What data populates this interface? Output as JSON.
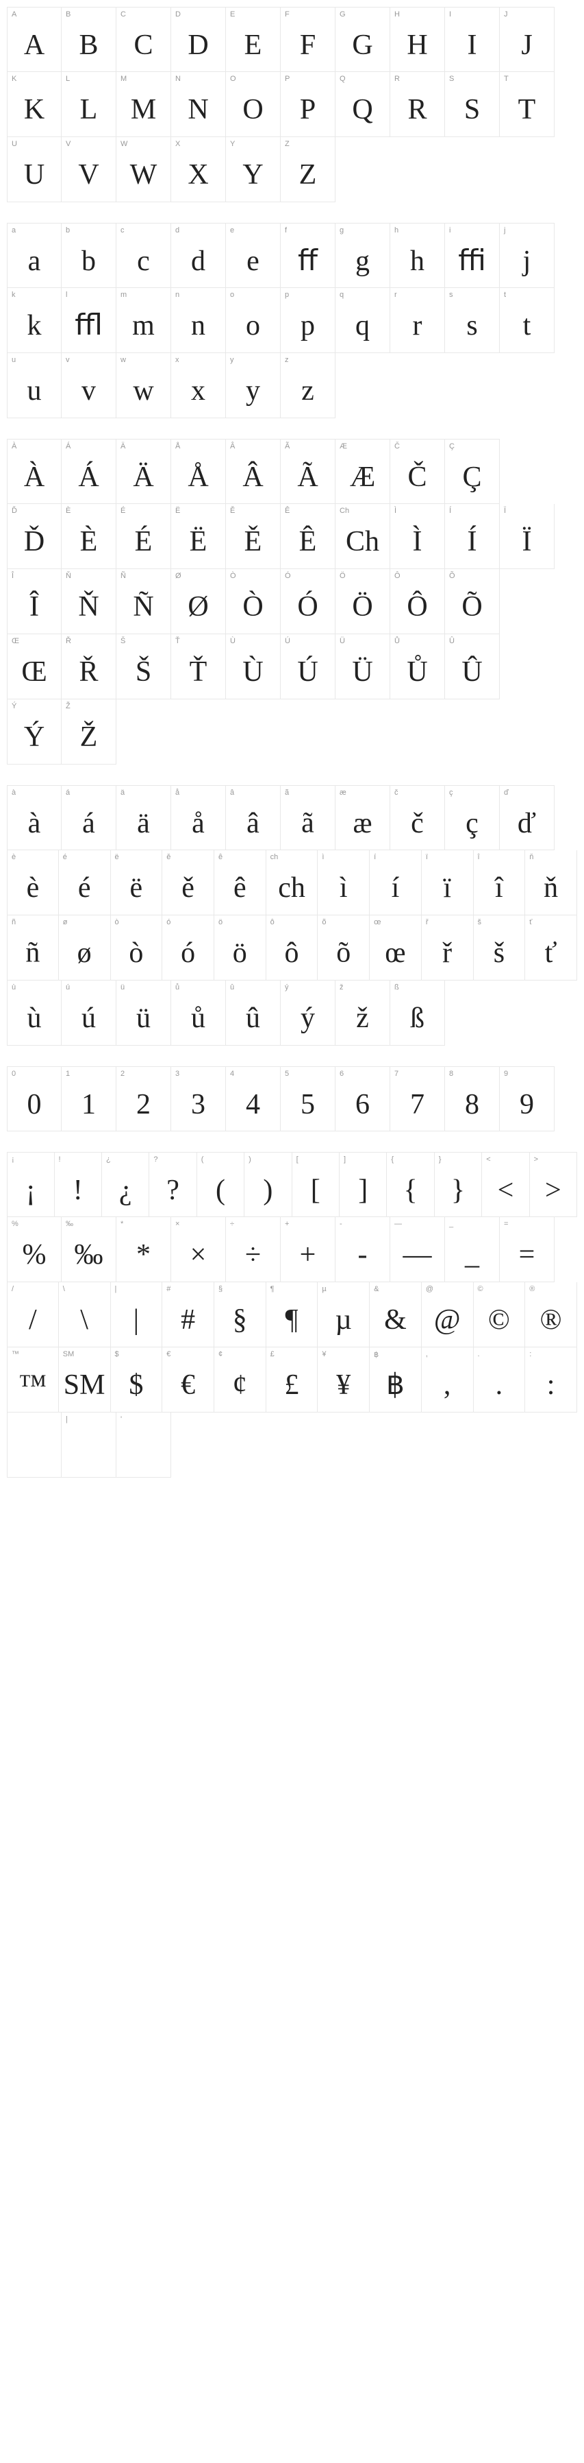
{
  "sections": [
    {
      "rows": [
        [
          {
            "label": "A",
            "glyph": "A"
          },
          {
            "label": "B",
            "glyph": "B"
          },
          {
            "label": "C",
            "glyph": "C"
          },
          {
            "label": "D",
            "glyph": "D"
          },
          {
            "label": "E",
            "glyph": "E"
          },
          {
            "label": "F",
            "glyph": "F"
          },
          {
            "label": "G",
            "glyph": "G"
          },
          {
            "label": "H",
            "glyph": "H"
          },
          {
            "label": "I",
            "glyph": "I"
          },
          {
            "label": "J",
            "glyph": "J"
          }
        ],
        [
          {
            "label": "K",
            "glyph": "K"
          },
          {
            "label": "L",
            "glyph": "L"
          },
          {
            "label": "M",
            "glyph": "M"
          },
          {
            "label": "N",
            "glyph": "N"
          },
          {
            "label": "O",
            "glyph": "O"
          },
          {
            "label": "P",
            "glyph": "P"
          },
          {
            "label": "Q",
            "glyph": "Q"
          },
          {
            "label": "R",
            "glyph": "R"
          },
          {
            "label": "S",
            "glyph": "S"
          },
          {
            "label": "T",
            "glyph": "T"
          }
        ],
        [
          {
            "label": "U",
            "glyph": "U"
          },
          {
            "label": "V",
            "glyph": "V"
          },
          {
            "label": "W",
            "glyph": "W"
          },
          {
            "label": "X",
            "glyph": "X"
          },
          {
            "label": "Y",
            "glyph": "Y"
          },
          {
            "label": "Z",
            "glyph": "Z"
          }
        ]
      ]
    },
    {
      "rows": [
        [
          {
            "label": "a",
            "glyph": "a"
          },
          {
            "label": "b",
            "glyph": "b"
          },
          {
            "label": "c",
            "glyph": "c"
          },
          {
            "label": "d",
            "glyph": "d"
          },
          {
            "label": "e",
            "glyph": "e"
          },
          {
            "label": "f",
            "glyph": "ﬀ"
          },
          {
            "label": "g",
            "glyph": "g"
          },
          {
            "label": "h",
            "glyph": "h"
          },
          {
            "label": "i",
            "glyph": "ﬃ"
          },
          {
            "label": "j",
            "glyph": "j"
          }
        ],
        [
          {
            "label": "k",
            "glyph": "k"
          },
          {
            "label": "l",
            "glyph": "ﬄ"
          },
          {
            "label": "m",
            "glyph": "m"
          },
          {
            "label": "n",
            "glyph": "n"
          },
          {
            "label": "o",
            "glyph": "o"
          },
          {
            "label": "p",
            "glyph": "p"
          },
          {
            "label": "q",
            "glyph": "q"
          },
          {
            "label": "r",
            "glyph": "r"
          },
          {
            "label": "s",
            "glyph": "s"
          },
          {
            "label": "t",
            "glyph": "t"
          }
        ],
        [
          {
            "label": "u",
            "glyph": "u"
          },
          {
            "label": "v",
            "glyph": "v"
          },
          {
            "label": "w",
            "glyph": "w"
          },
          {
            "label": "x",
            "glyph": "x"
          },
          {
            "label": "y",
            "glyph": "y"
          },
          {
            "label": "z",
            "glyph": "z"
          }
        ]
      ]
    },
    {
      "rows": [
        [
          {
            "label": "À",
            "glyph": "À"
          },
          {
            "label": "Á",
            "glyph": "Á"
          },
          {
            "label": "Ä",
            "glyph": "Ä"
          },
          {
            "label": "Å",
            "glyph": "Å"
          },
          {
            "label": "Â",
            "glyph": "Â"
          },
          {
            "label": "Ã",
            "glyph": "Ã"
          },
          {
            "label": "Æ",
            "glyph": "Æ"
          },
          {
            "label": "Č",
            "glyph": "Č"
          },
          {
            "label": "Ç",
            "glyph": "Ç"
          }
        ],
        [
          {
            "label": "Ď",
            "glyph": "Ď"
          },
          {
            "label": "È",
            "glyph": "È"
          },
          {
            "label": "É",
            "glyph": "É"
          },
          {
            "label": "Ë",
            "glyph": "Ë"
          },
          {
            "label": "Ě",
            "glyph": "Ě"
          },
          {
            "label": "Ê",
            "glyph": "Ê"
          },
          {
            "label": "Ch",
            "glyph": "Ch"
          },
          {
            "label": "Ì",
            "glyph": "Ì"
          },
          {
            "label": "Í",
            "glyph": "Í"
          },
          {
            "label": "Ï",
            "glyph": "Ï"
          }
        ],
        [
          {
            "label": "Î",
            "glyph": "Î"
          },
          {
            "label": "Ň",
            "glyph": "Ň"
          },
          {
            "label": "Ñ",
            "glyph": "Ñ"
          },
          {
            "label": "Ø",
            "glyph": "Ø"
          },
          {
            "label": "Ò",
            "glyph": "Ò"
          },
          {
            "label": "Ó",
            "glyph": "Ó"
          },
          {
            "label": "Ö",
            "glyph": "Ö"
          },
          {
            "label": "Ô",
            "glyph": "Ô"
          },
          {
            "label": "Õ",
            "glyph": "Õ"
          }
        ],
        [
          {
            "label": "Œ",
            "glyph": "Œ"
          },
          {
            "label": "Ř",
            "glyph": "Ř"
          },
          {
            "label": "Š",
            "glyph": "Š"
          },
          {
            "label": "Ť",
            "glyph": "Ť"
          },
          {
            "label": "Ù",
            "glyph": "Ù"
          },
          {
            "label": "Ú",
            "glyph": "Ú"
          },
          {
            "label": "Ü",
            "glyph": "Ü"
          },
          {
            "label": "Ů",
            "glyph": "Ů"
          },
          {
            "label": "Û",
            "glyph": "Û"
          }
        ],
        [
          {
            "label": "Ý",
            "glyph": "Ý"
          },
          {
            "label": "Ž",
            "glyph": "Ž"
          }
        ]
      ]
    },
    {
      "rows": [
        [
          {
            "label": "à",
            "glyph": "à"
          },
          {
            "label": "á",
            "glyph": "á"
          },
          {
            "label": "ä",
            "glyph": "ä"
          },
          {
            "label": "å",
            "glyph": "å"
          },
          {
            "label": "â",
            "glyph": "â"
          },
          {
            "label": "ã",
            "glyph": "ã"
          },
          {
            "label": "æ",
            "glyph": "æ"
          },
          {
            "label": "č",
            "glyph": "č"
          },
          {
            "label": "ç",
            "glyph": "ç"
          },
          {
            "label": "ď",
            "glyph": "ď"
          }
        ],
        [
          {
            "label": "è",
            "glyph": "è"
          },
          {
            "label": "é",
            "glyph": "é"
          },
          {
            "label": "ë",
            "glyph": "ë"
          },
          {
            "label": "ě",
            "glyph": "ě"
          },
          {
            "label": "ê",
            "glyph": "ê"
          },
          {
            "label": "ch",
            "glyph": "ch"
          },
          {
            "label": "ì",
            "glyph": "ì"
          },
          {
            "label": "í",
            "glyph": "í"
          },
          {
            "label": "ï",
            "glyph": "ï"
          },
          {
            "label": "î",
            "glyph": "î"
          },
          {
            "label": "ň",
            "glyph": "ň"
          }
        ],
        [
          {
            "label": "ñ",
            "glyph": "ñ"
          },
          {
            "label": "ø",
            "glyph": "ø"
          },
          {
            "label": "ò",
            "glyph": "ò"
          },
          {
            "label": "ó",
            "glyph": "ó"
          },
          {
            "label": "ö",
            "glyph": "ö"
          },
          {
            "label": "ô",
            "glyph": "ô"
          },
          {
            "label": "õ",
            "glyph": "õ"
          },
          {
            "label": "œ",
            "glyph": "œ"
          },
          {
            "label": "ř",
            "glyph": "ř"
          },
          {
            "label": "š",
            "glyph": "š"
          },
          {
            "label": "ť",
            "glyph": "ť"
          }
        ],
        [
          {
            "label": "ù",
            "glyph": "ù"
          },
          {
            "label": "ú",
            "glyph": "ú"
          },
          {
            "label": "ü",
            "glyph": "ü"
          },
          {
            "label": "ů",
            "glyph": "ů"
          },
          {
            "label": "û",
            "glyph": "û"
          },
          {
            "label": "ý",
            "glyph": "ý"
          },
          {
            "label": "ž",
            "glyph": "ž"
          },
          {
            "label": "ß",
            "glyph": "ß"
          }
        ]
      ]
    },
    {
      "rows": [
        [
          {
            "label": "0",
            "glyph": "0"
          },
          {
            "label": "1",
            "glyph": "1"
          },
          {
            "label": "2",
            "glyph": "2"
          },
          {
            "label": "3",
            "glyph": "3"
          },
          {
            "label": "4",
            "glyph": "4"
          },
          {
            "label": "5",
            "glyph": "5"
          },
          {
            "label": "6",
            "glyph": "6"
          },
          {
            "label": "7",
            "glyph": "7"
          },
          {
            "label": "8",
            "glyph": "8"
          },
          {
            "label": "9",
            "glyph": "9"
          }
        ]
      ]
    },
    {
      "rows": [
        [
          {
            "label": "¡",
            "glyph": "¡"
          },
          {
            "label": "!",
            "glyph": "!"
          },
          {
            "label": "¿",
            "glyph": "¿"
          },
          {
            "label": "?",
            "glyph": "?"
          },
          {
            "label": "(",
            "glyph": "("
          },
          {
            "label": ")",
            "glyph": ")"
          },
          {
            "label": "[",
            "glyph": "["
          },
          {
            "label": "]",
            "glyph": "]"
          },
          {
            "label": "{",
            "glyph": "{"
          },
          {
            "label": "}",
            "glyph": "}"
          },
          {
            "label": "<",
            "glyph": "<"
          },
          {
            "label": ">",
            "glyph": ">"
          }
        ],
        [
          {
            "label": "%",
            "glyph": "%"
          },
          {
            "label": "‰",
            "glyph": "‰"
          },
          {
            "label": "*",
            "glyph": "*"
          },
          {
            "label": "×",
            "glyph": "×"
          },
          {
            "label": "÷",
            "glyph": "÷"
          },
          {
            "label": "+",
            "glyph": "+"
          },
          {
            "label": "-",
            "glyph": "-"
          },
          {
            "label": "—",
            "glyph": "—"
          },
          {
            "label": "_",
            "glyph": "_"
          },
          {
            "label": "=",
            "glyph": "="
          }
        ],
        [
          {
            "label": "/",
            "glyph": "/"
          },
          {
            "label": "\\",
            "glyph": "\\"
          },
          {
            "label": "|",
            "glyph": "|"
          },
          {
            "label": "#",
            "glyph": "#"
          },
          {
            "label": "§",
            "glyph": "§"
          },
          {
            "label": "¶",
            "glyph": "¶"
          },
          {
            "label": "µ",
            "glyph": "µ"
          },
          {
            "label": "&",
            "glyph": "&"
          },
          {
            "label": "@",
            "glyph": "@"
          },
          {
            "label": "©",
            "glyph": "©"
          },
          {
            "label": "®",
            "glyph": "®"
          }
        ],
        [
          {
            "label": "™",
            "glyph": "™"
          },
          {
            "label": "SM",
            "glyph": "SM"
          },
          {
            "label": "$",
            "glyph": "$"
          },
          {
            "label": "€",
            "glyph": "€"
          },
          {
            "label": "¢",
            "glyph": "¢"
          },
          {
            "label": "£",
            "glyph": "£"
          },
          {
            "label": "¥",
            "glyph": "¥"
          },
          {
            "label": "฿",
            "glyph": "฿"
          },
          {
            "label": ",",
            "glyph": ","
          },
          {
            "label": ".",
            "glyph": "."
          },
          {
            "label": ":",
            "glyph": ":"
          }
        ],
        [
          {
            "label": "",
            "glyph": ""
          },
          {
            "label": "|",
            "glyph": ""
          },
          {
            "label": "'",
            "glyph": ""
          }
        ]
      ]
    }
  ]
}
